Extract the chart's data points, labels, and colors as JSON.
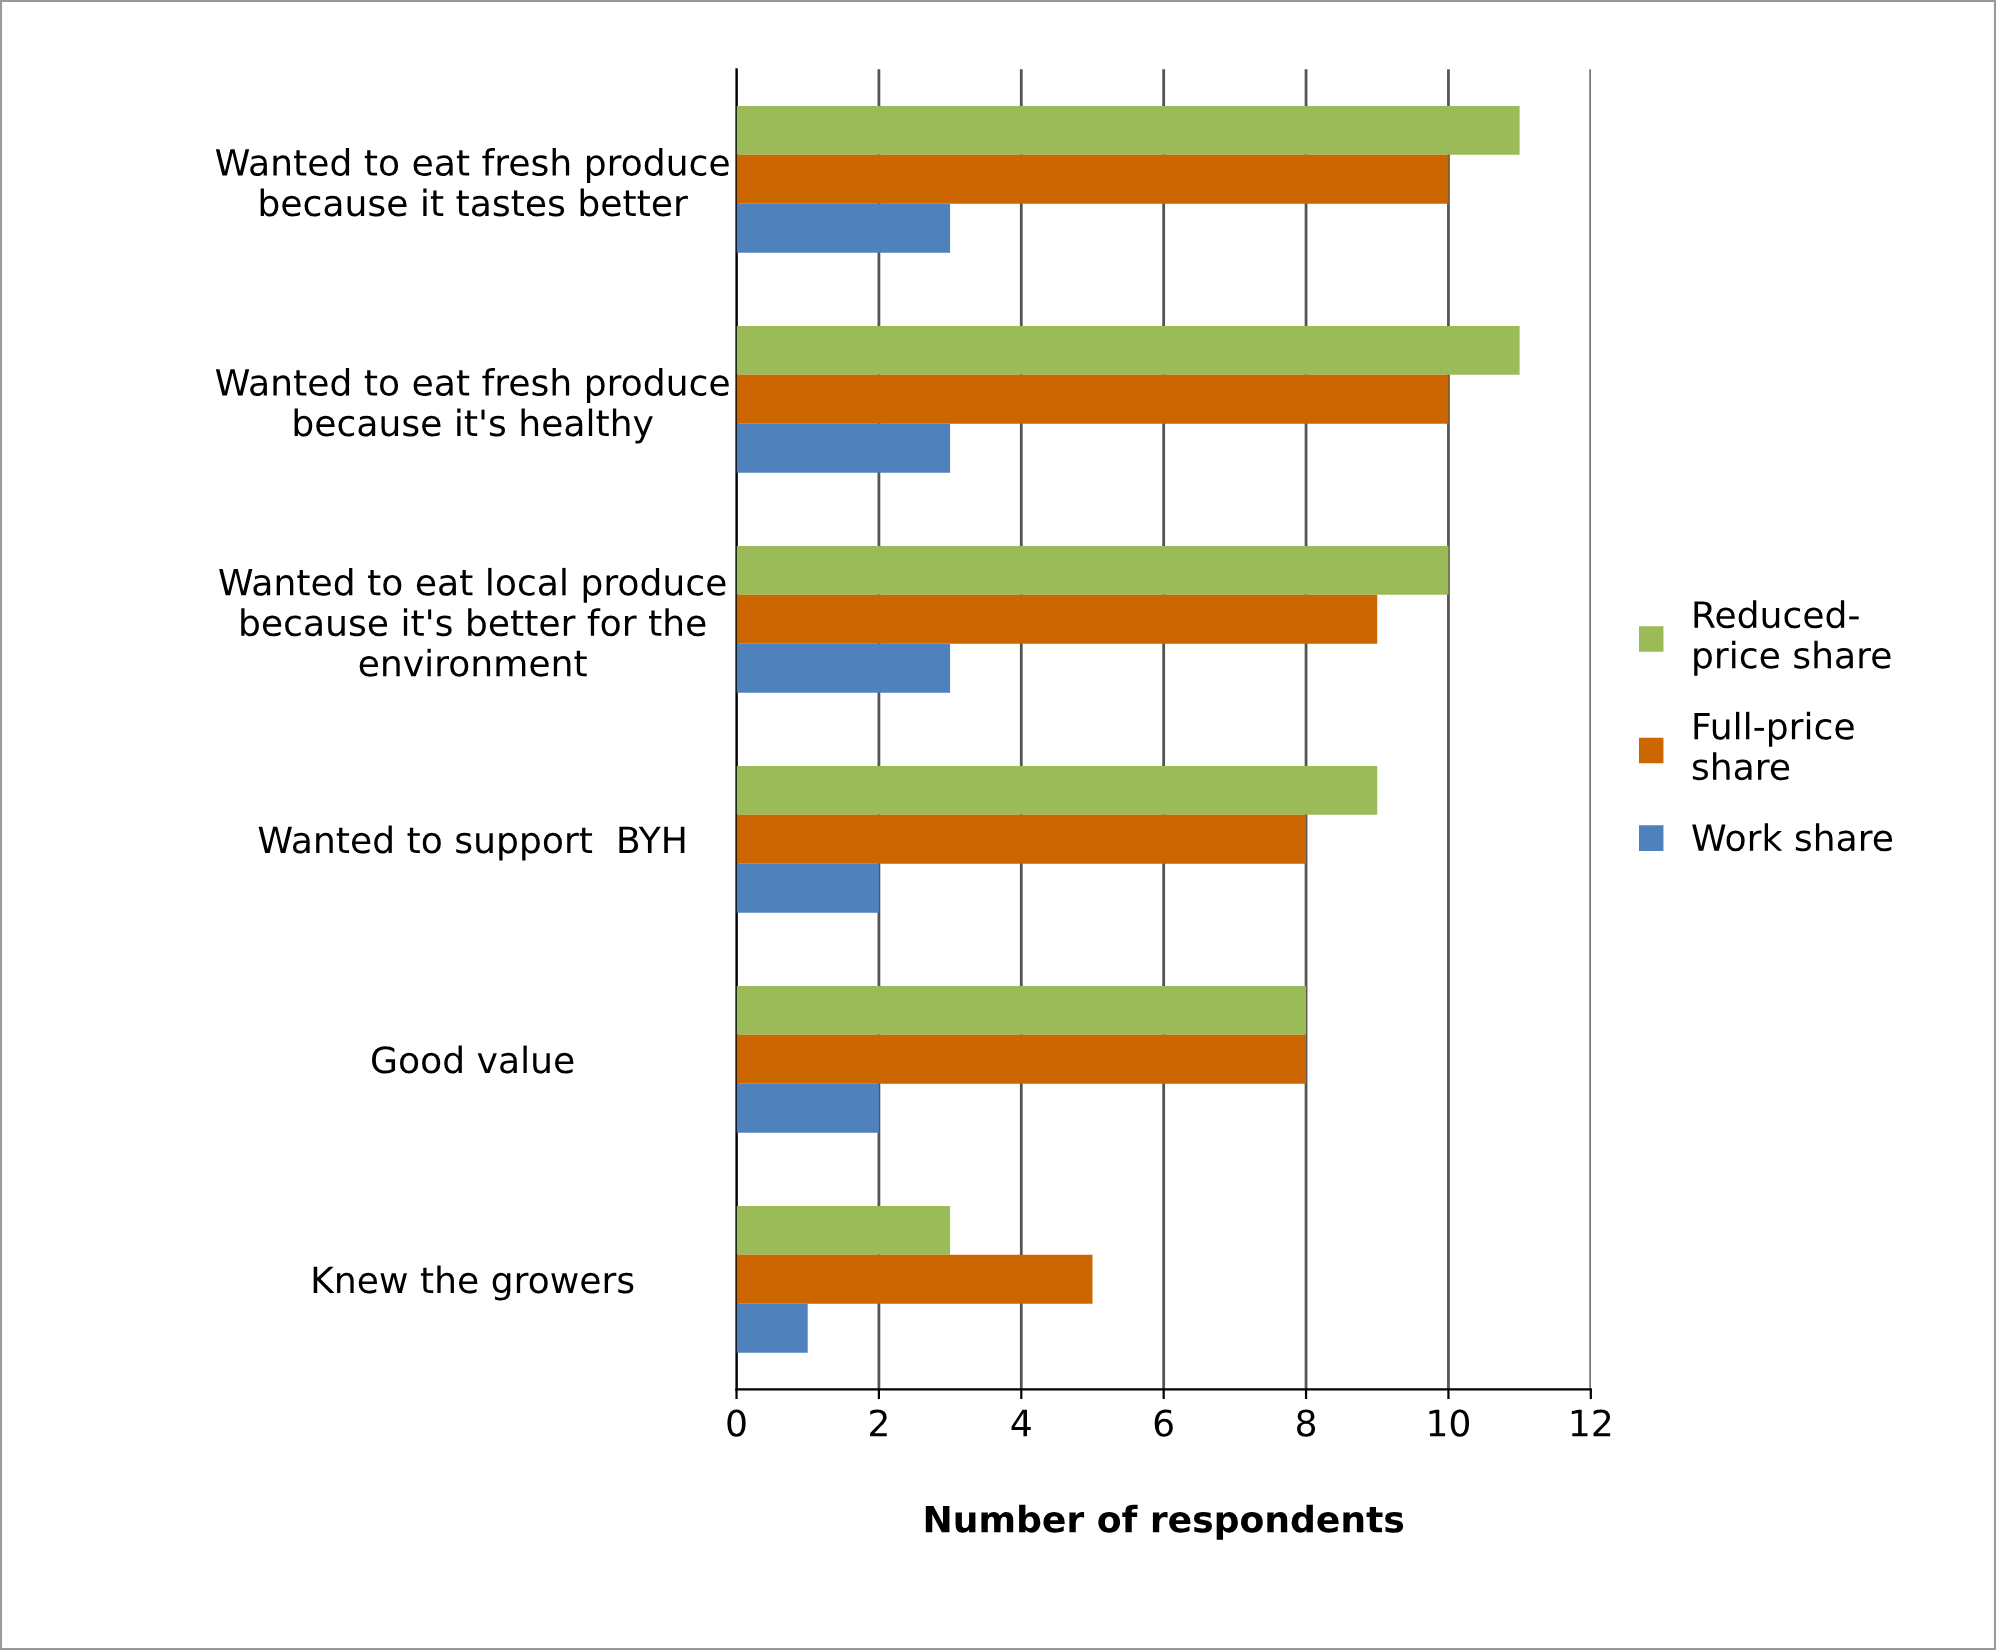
{
  "chart_data": {
    "type": "bar",
    "orientation": "horizontal",
    "xlabel": "Number of respondents",
    "categories": [
      "Wanted to eat fresh produce\nbecause it tastes better",
      "Wanted to eat fresh produce\nbecause it's healthy",
      "Wanted to eat local produce\nbecause it's better for the\nenvironment",
      "Wanted to support  BYH",
      "Good value",
      "Knew the growers"
    ],
    "series": [
      {
        "name": "Reduced-\nprice share",
        "color": "#9bbb59",
        "values": [
          11,
          11,
          10,
          9,
          8,
          3
        ]
      },
      {
        "name": "Full-price\nshare",
        "color": "#cc6600",
        "values": [
          10,
          10,
          9,
          8,
          8,
          5
        ]
      },
      {
        "name": "Work share",
        "color": "#4f81bd",
        "values": [
          3,
          3,
          3,
          2,
          2,
          1
        ]
      }
    ],
    "xlim": [
      0,
      12
    ],
    "xticks": [
      0,
      2,
      4,
      6,
      8,
      10,
      12
    ],
    "grid": "x",
    "legend": "right"
  }
}
